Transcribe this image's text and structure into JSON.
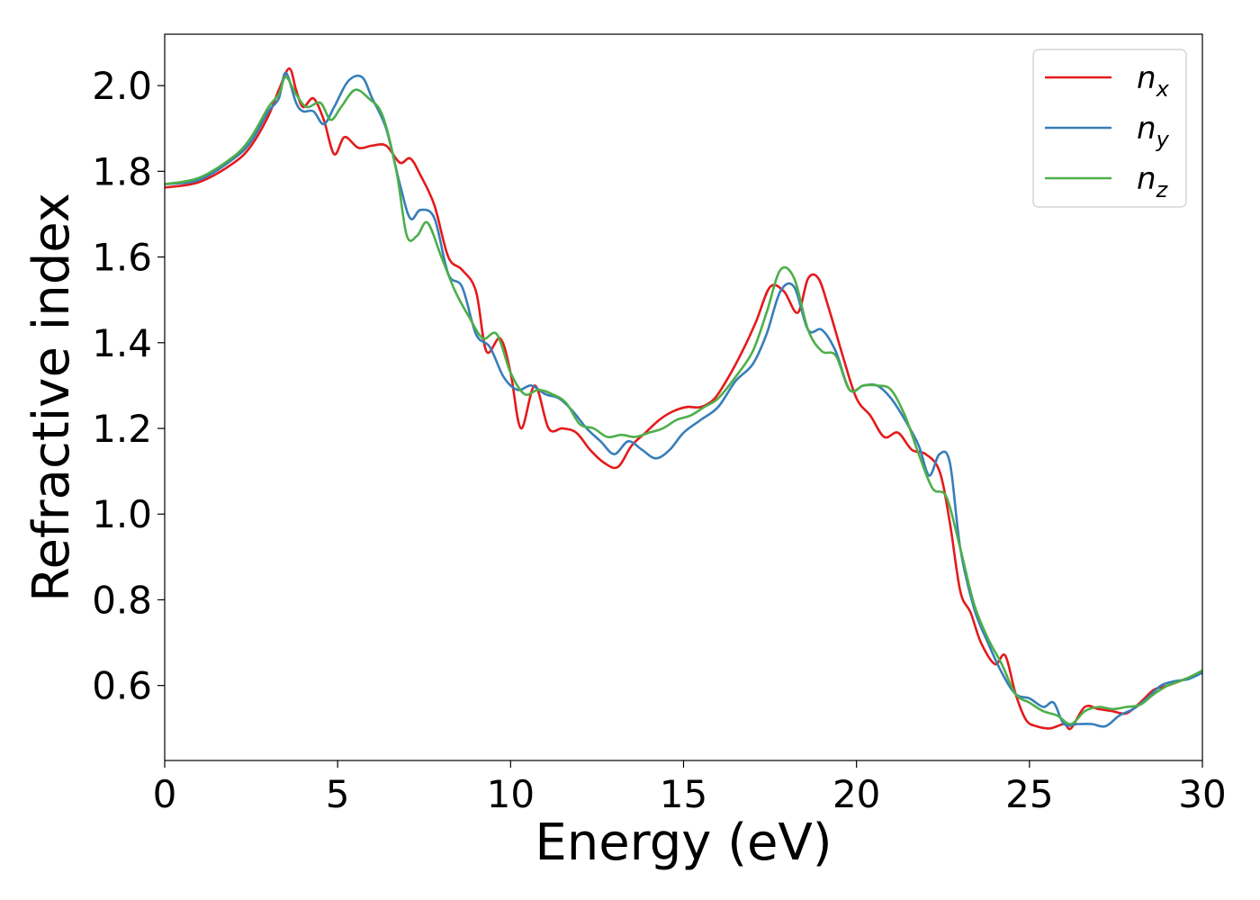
{
  "chart_data": {
    "type": "line",
    "xlabel": "Energy (eV)",
    "ylabel": "Refractive index",
    "xlim": [
      0,
      30
    ],
    "ylim": [
      0.425,
      2.12
    ],
    "xticks": [
      "0",
      "5",
      "10",
      "15",
      "20",
      "25",
      "30"
    ],
    "yticks": [
      "0.6",
      "0.8",
      "1.0",
      "1.2",
      "1.4",
      "1.6",
      "1.8",
      "2.0"
    ],
    "grid": false,
    "legend_position": "top-right",
    "series": [
      {
        "name": "n",
        "subscript": "x",
        "color": "#e41a1c",
        "x": [
          0,
          1,
          2,
          2.5,
          3,
          3.3,
          3.6,
          3.8,
          4.0,
          4.3,
          4.6,
          4.9,
          5.2,
          5.6,
          6.0,
          6.4,
          6.8,
          7.1,
          7.4,
          7.8,
          8.2,
          8.6,
          9.0,
          9.3,
          9.7,
          10.0,
          10.3,
          10.7,
          11.1,
          11.5,
          11.9,
          12.3,
          12.7,
          13.1,
          13.5,
          13.9,
          14.3,
          14.7,
          15.1,
          15.5,
          15.9,
          16.3,
          16.7,
          17.1,
          17.5,
          17.9,
          18.3,
          18.6,
          18.9,
          19.2,
          19.6,
          20.0,
          20.4,
          20.8,
          21.2,
          21.6,
          22.0,
          22.4,
          22.7,
          23.0,
          23.3,
          23.6,
          24.0,
          24.3,
          24.6,
          24.9,
          25.2,
          25.6,
          26.0,
          26.2,
          26.6,
          27.0,
          27.4,
          27.8,
          28.2,
          28.6,
          29.0,
          29.5,
          30.0
        ],
        "y": [
          1.762,
          1.775,
          1.82,
          1.86,
          1.93,
          1.99,
          2.04,
          1.99,
          1.95,
          1.97,
          1.92,
          1.84,
          1.88,
          1.855,
          1.86,
          1.86,
          1.82,
          1.83,
          1.79,
          1.72,
          1.6,
          1.57,
          1.52,
          1.38,
          1.41,
          1.33,
          1.2,
          1.3,
          1.2,
          1.2,
          1.19,
          1.15,
          1.12,
          1.11,
          1.16,
          1.19,
          1.22,
          1.24,
          1.25,
          1.25,
          1.27,
          1.32,
          1.38,
          1.45,
          1.53,
          1.52,
          1.47,
          1.55,
          1.55,
          1.48,
          1.37,
          1.27,
          1.23,
          1.18,
          1.19,
          1.15,
          1.14,
          1.1,
          0.98,
          0.82,
          0.77,
          0.7,
          0.65,
          0.67,
          0.58,
          0.52,
          0.505,
          0.5,
          0.51,
          0.5,
          0.55,
          0.545,
          0.54,
          0.535,
          0.56,
          0.59,
          0.6,
          0.615,
          0.63
        ]
      },
      {
        "name": "n",
        "subscript": "y",
        "color": "#377eb8",
        "x": [
          0,
          1,
          2,
          2.5,
          3,
          3.3,
          3.5,
          3.8,
          4.0,
          4.3,
          4.6,
          4.9,
          5.3,
          5.7,
          6.0,
          6.4,
          6.8,
          7.1,
          7.4,
          7.8,
          8.2,
          8.6,
          9.0,
          9.4,
          9.8,
          10.2,
          10.6,
          11.0,
          11.4,
          11.8,
          12.2,
          12.6,
          13.0,
          13.4,
          13.8,
          14.2,
          14.6,
          15.0,
          15.5,
          16.0,
          16.5,
          17.0,
          17.4,
          17.8,
          18.2,
          18.6,
          19.0,
          19.4,
          19.8,
          20.2,
          20.6,
          21.0,
          21.4,
          21.8,
          22.1,
          22.4,
          22.7,
          23.0,
          23.4,
          23.8,
          24.2,
          24.6,
          25.0,
          25.4,
          25.7,
          26.0,
          26.4,
          26.8,
          27.2,
          27.6,
          28.0,
          28.4,
          28.8,
          29.2,
          29.6,
          30.0
        ],
        "y": [
          1.77,
          1.78,
          1.83,
          1.87,
          1.94,
          1.97,
          2.03,
          1.96,
          1.94,
          1.94,
          1.91,
          1.95,
          2.01,
          2.02,
          1.97,
          1.9,
          1.77,
          1.69,
          1.71,
          1.69,
          1.56,
          1.53,
          1.42,
          1.39,
          1.32,
          1.29,
          1.3,
          1.28,
          1.27,
          1.24,
          1.2,
          1.17,
          1.14,
          1.17,
          1.15,
          1.13,
          1.15,
          1.19,
          1.22,
          1.25,
          1.31,
          1.35,
          1.42,
          1.52,
          1.53,
          1.43,
          1.43,
          1.38,
          1.29,
          1.3,
          1.3,
          1.27,
          1.22,
          1.16,
          1.09,
          1.14,
          1.12,
          0.92,
          0.78,
          0.7,
          0.63,
          0.58,
          0.57,
          0.55,
          0.56,
          0.51,
          0.51,
          0.51,
          0.505,
          0.53,
          0.545,
          0.57,
          0.6,
          0.61,
          0.615,
          0.63
        ]
      },
      {
        "name": "n",
        "subscript": "z",
        "color": "#4daf4a",
        "x": [
          0,
          1,
          2,
          2.5,
          3,
          3.3,
          3.5,
          3.8,
          4.1,
          4.5,
          4.8,
          5.1,
          5.5,
          5.9,
          6.3,
          6.7,
          7.0,
          7.3,
          7.6,
          8.0,
          8.4,
          8.8,
          9.2,
          9.6,
          10.0,
          10.4,
          10.8,
          11.2,
          11.6,
          12.0,
          12.4,
          12.8,
          13.2,
          13.6,
          14.0,
          14.4,
          14.8,
          15.2,
          15.6,
          16.0,
          16.5,
          17.0,
          17.4,
          17.8,
          18.2,
          18.6,
          19.0,
          19.4,
          19.8,
          20.2,
          20.6,
          21.0,
          21.4,
          21.8,
          22.2,
          22.6,
          23.0,
          23.4,
          23.8,
          24.2,
          24.6,
          25.0,
          25.4,
          25.8,
          26.2,
          26.6,
          27.0,
          27.4,
          27.8,
          28.2,
          28.6,
          29.0,
          29.5,
          30.0
        ],
        "y": [
          1.77,
          1.785,
          1.835,
          1.88,
          1.95,
          1.98,
          2.02,
          1.98,
          1.95,
          1.96,
          1.92,
          1.95,
          1.99,
          1.97,
          1.93,
          1.8,
          1.65,
          1.65,
          1.68,
          1.6,
          1.52,
          1.46,
          1.41,
          1.42,
          1.33,
          1.28,
          1.29,
          1.28,
          1.26,
          1.21,
          1.2,
          1.18,
          1.185,
          1.18,
          1.19,
          1.2,
          1.22,
          1.23,
          1.25,
          1.27,
          1.32,
          1.38,
          1.47,
          1.57,
          1.55,
          1.43,
          1.38,
          1.37,
          1.29,
          1.3,
          1.3,
          1.29,
          1.23,
          1.14,
          1.06,
          1.04,
          0.92,
          0.79,
          0.71,
          0.65,
          0.58,
          0.56,
          0.54,
          0.53,
          0.51,
          0.54,
          0.55,
          0.545,
          0.55,
          0.555,
          0.58,
          0.6,
          0.615,
          0.635
        ]
      }
    ]
  }
}
